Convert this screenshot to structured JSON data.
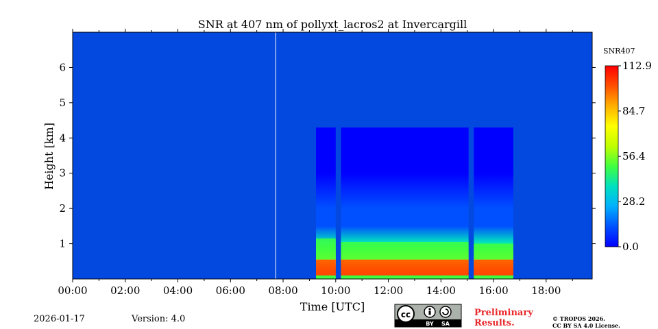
{
  "chart_data": {
    "type": "heatmap",
    "title": "SNR at 407 nm of pollyxt_lacros2 at Invercargill",
    "xlabel": "Time [UTC]",
    "ylabel": "Height [km]",
    "xlim": [
      0,
      19.75
    ],
    "ylim": [
      0,
      7
    ],
    "x_ticks": [
      0,
      2,
      4,
      6,
      8,
      10,
      12,
      14,
      16,
      18
    ],
    "x_tick_labels": [
      "00:00",
      "02:00",
      "04:00",
      "06:00",
      "08:00",
      "10:00",
      "12:00",
      "14:00",
      "16:00",
      "18:00"
    ],
    "y_ticks": [
      1,
      2,
      3,
      4,
      5,
      6
    ],
    "y_tick_labels": [
      "1",
      "2",
      "3",
      "4",
      "5",
      "6"
    ],
    "colorbar": {
      "label": "SNR407",
      "range": [
        0.0,
        112.9
      ],
      "ticks": [
        0.0,
        28.2,
        56.4,
        84.7,
        112.9
      ],
      "tick_labels": [
        "0.0",
        "28.2",
        "56.4",
        "84.7",
        "112.9"
      ],
      "colormap": [
        "#0000ff",
        "#0050ff",
        "#00b0ff",
        "#00e0c0",
        "#40ff40",
        "#c0ff00",
        "#ffff00",
        "#ffb000",
        "#ff5000",
        "#ff0000"
      ]
    },
    "background_color": "#0349e0",
    "data_gap_time": 7.72,
    "measurement_segments": [
      {
        "start": 9.25,
        "end": 10.0,
        "boundary_layer_top_km": 1.15,
        "noise_top_km": 4.3
      },
      {
        "start": 10.2,
        "end": 15.05,
        "boundary_layer_top_km": 1.05,
        "noise_top_km": 4.3
      },
      {
        "start": 15.25,
        "end": 16.75,
        "boundary_layer_top_km": 1.0,
        "noise_top_km": 4.3
      }
    ],
    "snr_profile": [
      {
        "height_km": 0.05,
        "snr": 40
      },
      {
        "height_km": 0.12,
        "snr": 112
      },
      {
        "height_km": 0.3,
        "snr": 105
      },
      {
        "height_km": 0.5,
        "snr": 80
      },
      {
        "height_km": 0.65,
        "snr": 60
      },
      {
        "height_km": 0.85,
        "snr": 45
      },
      {
        "height_km": 1.05,
        "snr": 35
      },
      {
        "height_km": 1.5,
        "snr": 18
      },
      {
        "height_km": 2.0,
        "snr": 12
      },
      {
        "height_km": 3.0,
        "snr": 6
      },
      {
        "height_km": 4.3,
        "snr": 3
      }
    ]
  },
  "footer": {
    "date": "2026-01-17",
    "version": "Version: 4.0",
    "preliminary_line1": "Preliminary",
    "preliminary_line2": "Results.",
    "copyright_line1": "© TROPOS 2026.",
    "copyright_line2": "CC BY SA 4.0 License.",
    "license_badge": {
      "cc": "cc",
      "by": "BY",
      "sa": "SA"
    }
  }
}
